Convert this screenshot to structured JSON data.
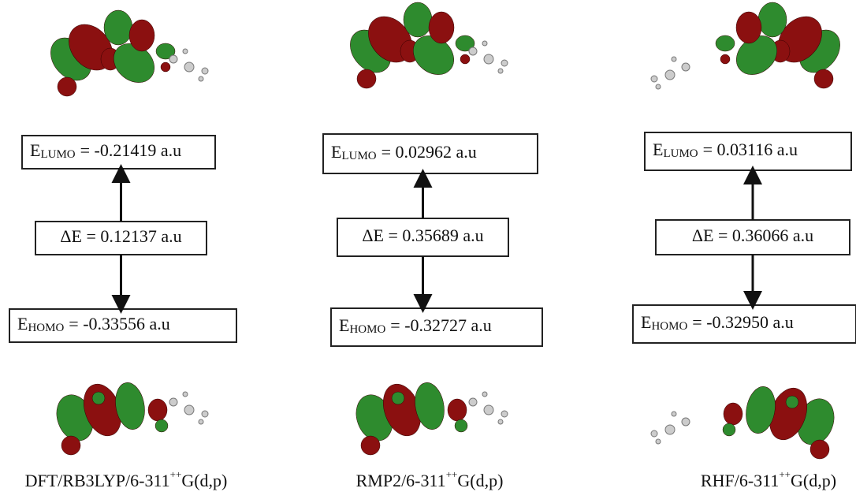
{
  "columns": [
    {
      "lumo": {
        "symbol": "E",
        "subscript": "LUMO",
        "value": "= -0.21419 a.u"
      },
      "gap": "ΔE = 0.12137 a.u",
      "homo": {
        "symbol": "E",
        "subscript": "HOMO",
        "value": "= -0.33556 a.u"
      },
      "method": {
        "base": "DFT/RB3LYP/6-311",
        "sup": "++",
        "suffix": "G(d,p)"
      }
    },
    {
      "lumo": {
        "symbol": "E",
        "subscript": "LUMO",
        "value": "= 0.02962 a.u"
      },
      "gap": "ΔE = 0.35689 a.u",
      "homo": {
        "symbol": "E",
        "subscript": "HOMO",
        "value": "= -0.32727 a.u"
      },
      "method": {
        "base": "RMP2/6-311",
        "sup": "++",
        "suffix": "G(d,p)"
      }
    },
    {
      "lumo": {
        "symbol": "E",
        "subscript": "LUMO",
        "value": "= 0.03116 a.u"
      },
      "gap": "ΔE = 0.36066 a.u",
      "homo": {
        "symbol": "E",
        "subscript": "HOMO",
        "value": "= -0.32950 a.u"
      },
      "method": {
        "base": "RHF/6-311",
        "sup": "++",
        "suffix": "G(d,p)"
      }
    }
  ]
}
